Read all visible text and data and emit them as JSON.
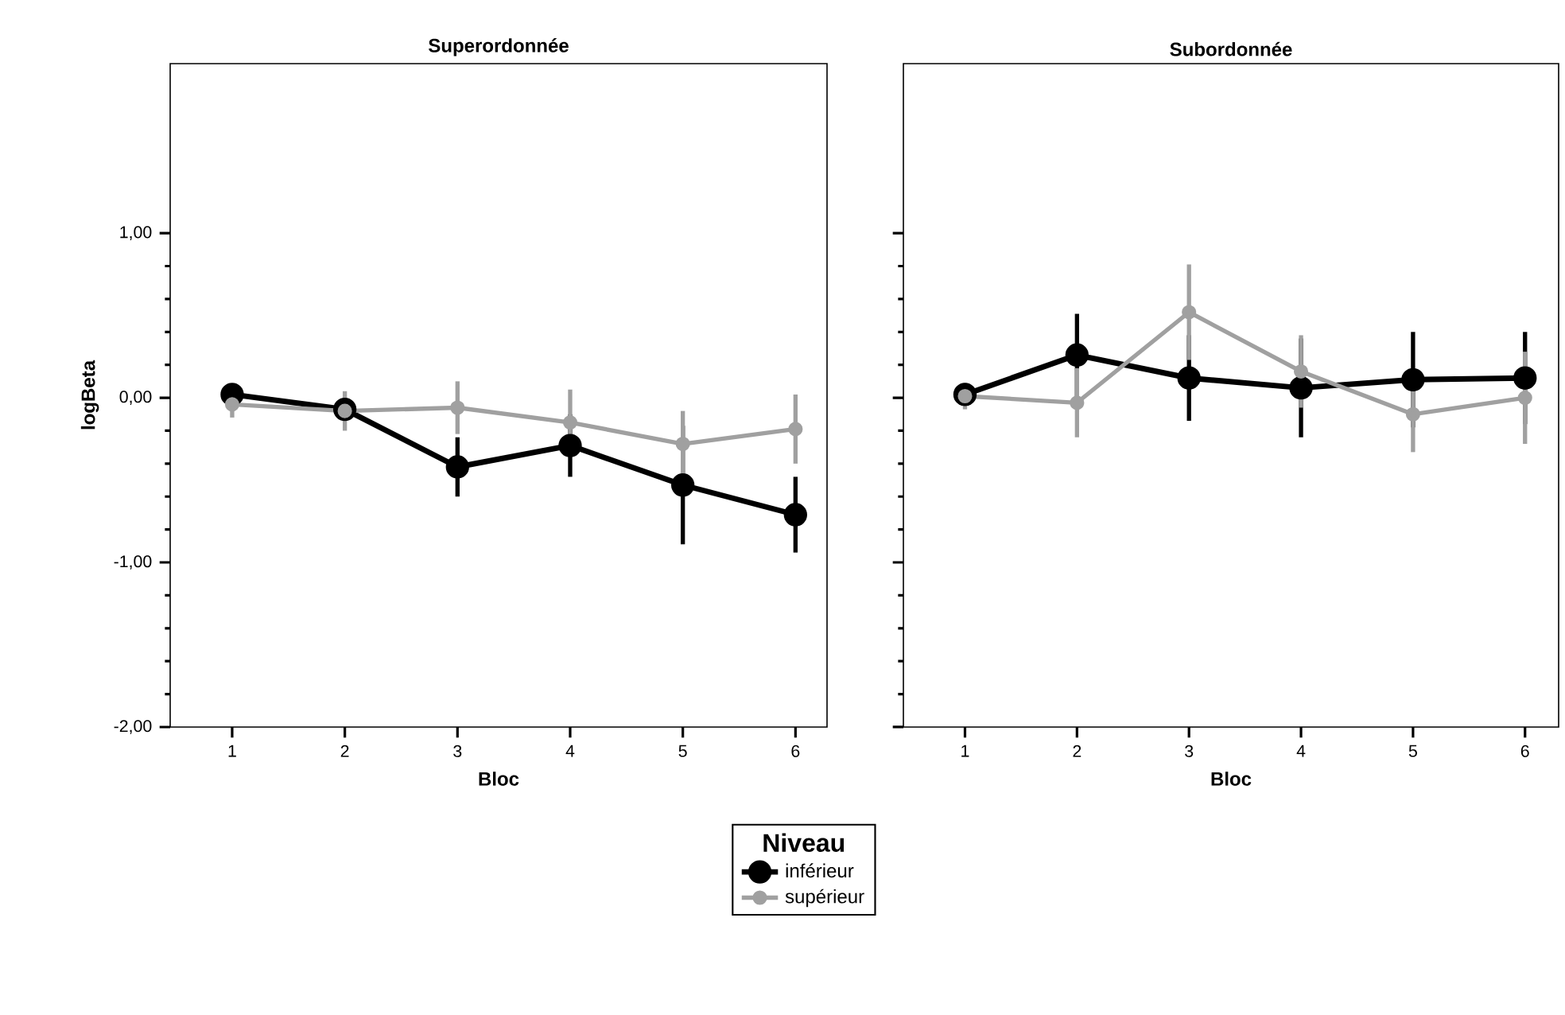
{
  "chart_data": [
    {
      "type": "line",
      "title": "Superordonnée",
      "xlabel": "Bloc",
      "ylabel": "logBeta",
      "legend_title": "Niveau",
      "legend": "bottom",
      "marker": "circle",
      "x": [
        1,
        2,
        3,
        4,
        5,
        6
      ],
      "xlim": [
        0.45,
        6.28
      ],
      "xticks": [
        1,
        2,
        3,
        4,
        5,
        6
      ],
      "ylim": [
        -2.0,
        2.03
      ],
      "yticks": [
        {
          "value": -2,
          "label": "-2,00"
        },
        {
          "value": -1,
          "label": "-1,00"
        },
        {
          "value": 0,
          "label": "0,00"
        },
        {
          "value": 1,
          "label": "1,00"
        }
      ],
      "series": [
        {
          "name": "inférieur",
          "color": "#000000",
          "values": [
            0.02,
            -0.07,
            -0.42,
            -0.29,
            -0.53,
            -0.71
          ],
          "errors": [
            0.05,
            0.05,
            0.18,
            0.19,
            0.36,
            0.23
          ]
        },
        {
          "name": "supérieur",
          "color": "#a0a0a0",
          "values": [
            -0.04,
            -0.08,
            -0.06,
            -0.15,
            -0.28,
            -0.19
          ],
          "errors": [
            0.08,
            0.12,
            0.16,
            0.2,
            0.2,
            0.21
          ]
        }
      ]
    },
    {
      "type": "line",
      "title": "Subordonnée",
      "xlabel": "Bloc",
      "tick_labels": "x",
      "marker": "circle",
      "x": [
        1,
        2,
        3,
        4,
        5,
        6
      ],
      "xlim": [
        0.45,
        6.3
      ],
      "xticks": [
        1,
        2,
        3,
        4,
        5,
        6
      ],
      "ylim": [
        -2.0,
        2.03
      ],
      "yticks": [
        {
          "value": -2,
          "label": null
        },
        {
          "value": -1,
          "label": null
        },
        {
          "value": 0,
          "label": null
        },
        {
          "value": 1,
          "label": null
        }
      ],
      "series": [
        {
          "color": "#000000",
          "values": [
            0.02,
            0.26,
            0.12,
            0.06,
            0.11,
            0.12
          ],
          "errors": [
            0.05,
            0.25,
            0.26,
            0.3,
            0.29,
            0.28
          ]
        },
        {
          "color": "#a0a0a0",
          "values": [
            0.01,
            -0.03,
            0.52,
            0.16,
            -0.1,
            0.0
          ],
          "errors": [
            0.08,
            0.21,
            0.29,
            0.22,
            0.23,
            0.28
          ]
        }
      ]
    }
  ]
}
